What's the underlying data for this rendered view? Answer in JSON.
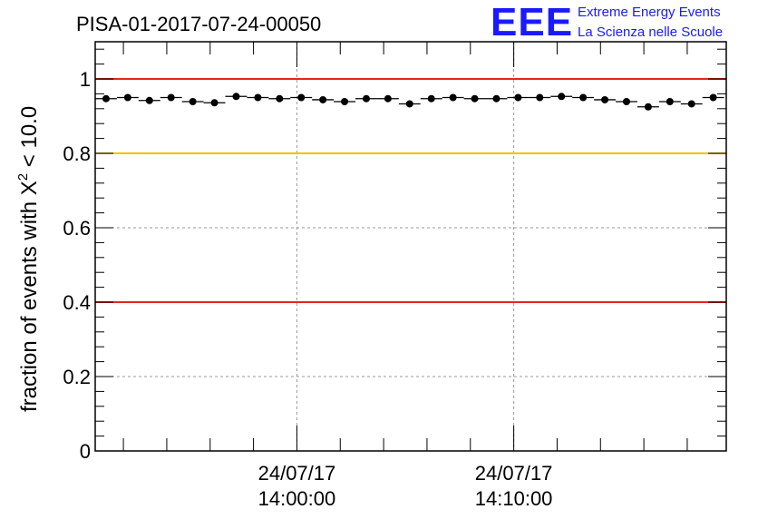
{
  "header": {
    "run_id": "PISA-01-2017-07-24-00050",
    "logo": {
      "letters": "EEE",
      "line1": "Extreme Energy Events",
      "line2": "La Scienza nelle Scuole"
    }
  },
  "chart_data": {
    "type": "scatter",
    "title": "PISA-01-2017-07-24-00050",
    "ylabel_prefix": "fraction of events with ",
    "ylabel_symbol": "X",
    "ylabel_exponent": "2",
    "ylabel_suffix": " < 10.0",
    "ylim": [
      0,
      1.1
    ],
    "yticks": [
      {
        "value": 0,
        "label": "0"
      },
      {
        "value": 0.2,
        "label": "0.2"
      },
      {
        "value": 0.4,
        "label": "0.4"
      },
      {
        "value": 0.6,
        "label": "0.6"
      },
      {
        "value": 0.8,
        "label": "0.8"
      },
      {
        "value": 1.0,
        "label": "1"
      }
    ],
    "xlim_minutes": [
      -9.3,
      19.8
    ],
    "xticks": [
      {
        "minutes": 0,
        "date": "24/07/17",
        "time": "14:00:00"
      },
      {
        "minutes": 10,
        "date": "24/07/17",
        "time": "14:10:00"
      }
    ],
    "reference_lines": [
      {
        "y": 1.0,
        "color": "#e8241c"
      },
      {
        "y": 0.8,
        "color": "#f5c000"
      },
      {
        "y": 0.4,
        "color": "#e8241c"
      }
    ],
    "grid": true,
    "series": [
      {
        "x_minutes": [
          -8.8,
          -7.8,
          -6.8,
          -5.8,
          -4.8,
          -3.8,
          -2.8,
          -1.8,
          -0.8,
          0.2,
          1.2,
          2.2,
          3.2,
          4.2,
          5.2,
          6.2,
          7.2,
          8.2,
          9.2,
          10.2,
          11.2,
          12.2,
          13.2,
          14.2,
          15.2,
          16.2,
          17.2,
          18.2,
          19.2
        ],
        "values": [
          0.947,
          0.95,
          0.942,
          0.95,
          0.939,
          0.936,
          0.953,
          0.95,
          0.947,
          0.95,
          0.944,
          0.939,
          0.947,
          0.947,
          0.933,
          0.947,
          0.95,
          0.947,
          0.947,
          0.95,
          0.95,
          0.953,
          0.95,
          0.944,
          0.939,
          0.925,
          0.939,
          0.933,
          0.95
        ]
      }
    ]
  }
}
